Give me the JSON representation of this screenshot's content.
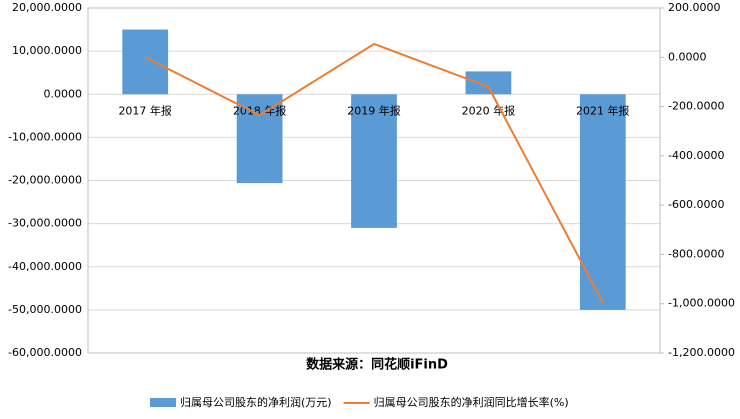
{
  "chart_data": {
    "type": "bar-line",
    "categories": [
      "2017 年报",
      "2018 年报",
      "2019 年报",
      "2020 年报",
      "2021 年报"
    ],
    "series": [
      {
        "name": "归属母公司股东的净利润(万元)",
        "color": "#5b9bd5",
        "type": "bar",
        "values": [
          15000,
          -20600,
          -31000,
          5300,
          -50000
        ]
      },
      {
        "name": "归属母公司股东的净利润同比增长率(%)",
        "color": "#ed7d31",
        "type": "line",
        "axis": "y2",
        "values": [
          0,
          -235,
          54,
          -120,
          -995
        ]
      }
    ],
    "ylim": [
      -60000,
      20000
    ],
    "yticks": [
      {
        "value": -60000,
        "label": "-60,000.0000"
      },
      {
        "value": -50000,
        "label": "-50,000.0000"
      },
      {
        "value": -40000,
        "label": "-40,000.0000"
      },
      {
        "value": -30000,
        "label": "-30,000.0000"
      },
      {
        "value": -20000,
        "label": "-20,000.0000"
      },
      {
        "value": -10000,
        "label": "-10,000.0000"
      },
      {
        "value": 0,
        "label": "0.0000"
      },
      {
        "value": 10000,
        "label": "10,000.0000"
      },
      {
        "value": 20000,
        "label": "20,000.0000"
      }
    ],
    "y2lim": [
      -1200,
      200
    ],
    "y2ticks": [
      {
        "value": -1200,
        "label": "-1,200.0000"
      },
      {
        "value": -1000,
        "label": "-1,000.0000"
      },
      {
        "value": -800,
        "label": "-800.0000"
      },
      {
        "value": -600,
        "label": "-600.0000"
      },
      {
        "value": -400,
        "label": "-400.0000"
      },
      {
        "value": -200,
        "label": "-200.0000"
      },
      {
        "value": 0,
        "label": "0.0000"
      },
      {
        "value": 200,
        "label": "200.0000"
      }
    ],
    "grid": true,
    "source": "数据来源：同花顺iFinD",
    "legend": "bottom"
  }
}
